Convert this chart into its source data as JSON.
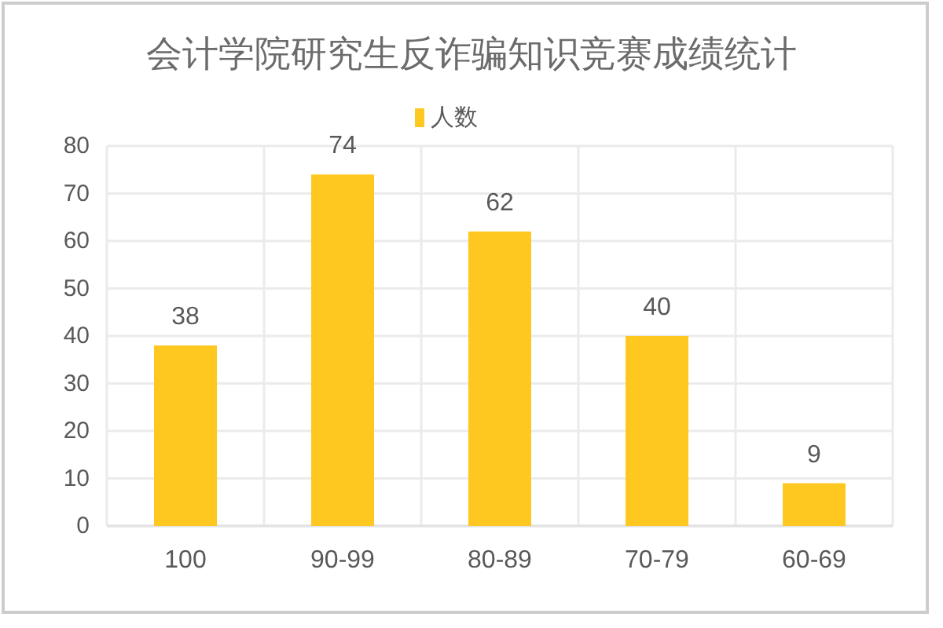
{
  "chart_data": {
    "type": "bar",
    "title": "会计学院研究生反诈骗知识竞赛成绩统计",
    "categories": [
      "100",
      "90-99",
      "80-89",
      "70-79",
      "60-69"
    ],
    "series": [
      {
        "name": "人数",
        "color": "#ffc820",
        "values": [
          38,
          74,
          62,
          40,
          9
        ]
      }
    ],
    "ylim": [
      0,
      80
    ],
    "yticks": [
      0,
      10,
      20,
      30,
      40,
      50,
      60,
      70,
      80
    ],
    "grid": true,
    "legend": "top",
    "data_labels": true
  }
}
